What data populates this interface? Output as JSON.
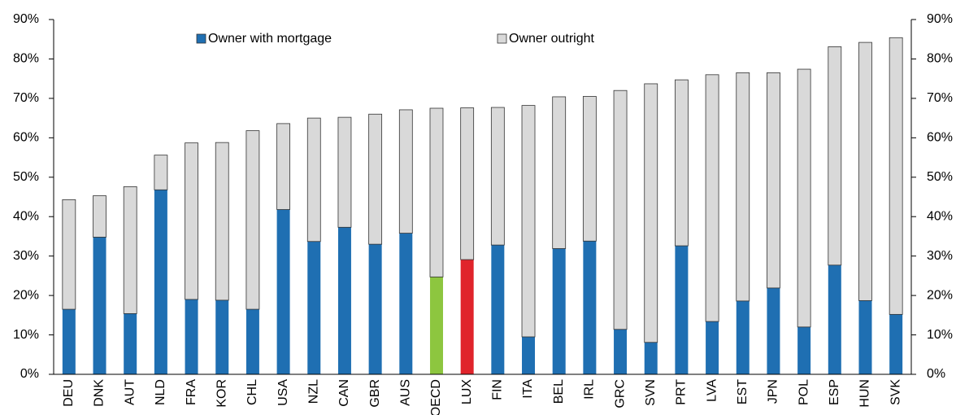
{
  "chart_data": {
    "type": "stacked_bar",
    "categories": [
      "DEU",
      "DNK",
      "AUT",
      "NLD",
      "FRA",
      "KOR",
      "CHL",
      "USA",
      "NZL",
      "CAN",
      "GBR",
      "AUS",
      "OECD",
      "LUX",
      "FIN",
      "ITA",
      "BEL",
      "IRL",
      "GRC",
      "SVN",
      "PRT",
      "LVA",
      "EST",
      "JPN",
      "POL",
      "ESP",
      "HUN",
      "SVK"
    ],
    "series": [
      {
        "name": "Owner with mortgage",
        "color": "#1f6fb2",
        "point_colors": {
          "12": "#8dc63f",
          "13": "#e0242b"
        },
        "values": [
          16.5,
          34.8,
          15.4,
          46.8,
          19.0,
          18.8,
          16.5,
          41.8,
          33.7,
          37.3,
          33.0,
          35.8,
          24.7,
          29.1,
          32.8,
          9.5,
          31.9,
          33.8,
          11.4,
          8.1,
          32.6,
          13.4,
          18.6,
          21.9,
          12.0,
          27.7,
          18.7,
          15.2
        ]
      },
      {
        "name": "Owner outright",
        "color": "#d9d9d9",
        "values": [
          27.8,
          10.5,
          32.2,
          8.8,
          39.7,
          40.0,
          45.3,
          21.8,
          31.3,
          27.9,
          33.0,
          31.3,
          42.8,
          38.5,
          34.9,
          58.7,
          38.5,
          36.7,
          60.6,
          65.6,
          42.1,
          62.6,
          57.9,
          54.6,
          65.4,
          55.4,
          65.5,
          70.2
        ]
      }
    ],
    "ylim": [
      0,
      90
    ],
    "yticks": [
      {
        "value": 0,
        "label": "0%"
      },
      {
        "value": 10,
        "label": "10%"
      },
      {
        "value": 20,
        "label": "20%"
      },
      {
        "value": 30,
        "label": "30%"
      },
      {
        "value": 40,
        "label": "40%"
      },
      {
        "value": 50,
        "label": "50%"
      },
      {
        "value": 60,
        "label": "60%"
      },
      {
        "value": 70,
        "label": "70%"
      },
      {
        "value": 80,
        "label": "80%"
      },
      {
        "value": 90,
        "label": "90%"
      }
    ],
    "y2lim": [
      0,
      90
    ],
    "y2ticks": [
      {
        "value": 0,
        "label": "0%"
      },
      {
        "value": 10,
        "label": "10%"
      },
      {
        "value": 20,
        "label": "20%"
      },
      {
        "value": 30,
        "label": "30%"
      },
      {
        "value": 40,
        "label": "40%"
      },
      {
        "value": 50,
        "label": "50%"
      },
      {
        "value": 60,
        "label": "60%"
      },
      {
        "value": 70,
        "label": "70%"
      },
      {
        "value": 80,
        "label": "80%"
      },
      {
        "value": 90,
        "label": "90%"
      }
    ]
  }
}
